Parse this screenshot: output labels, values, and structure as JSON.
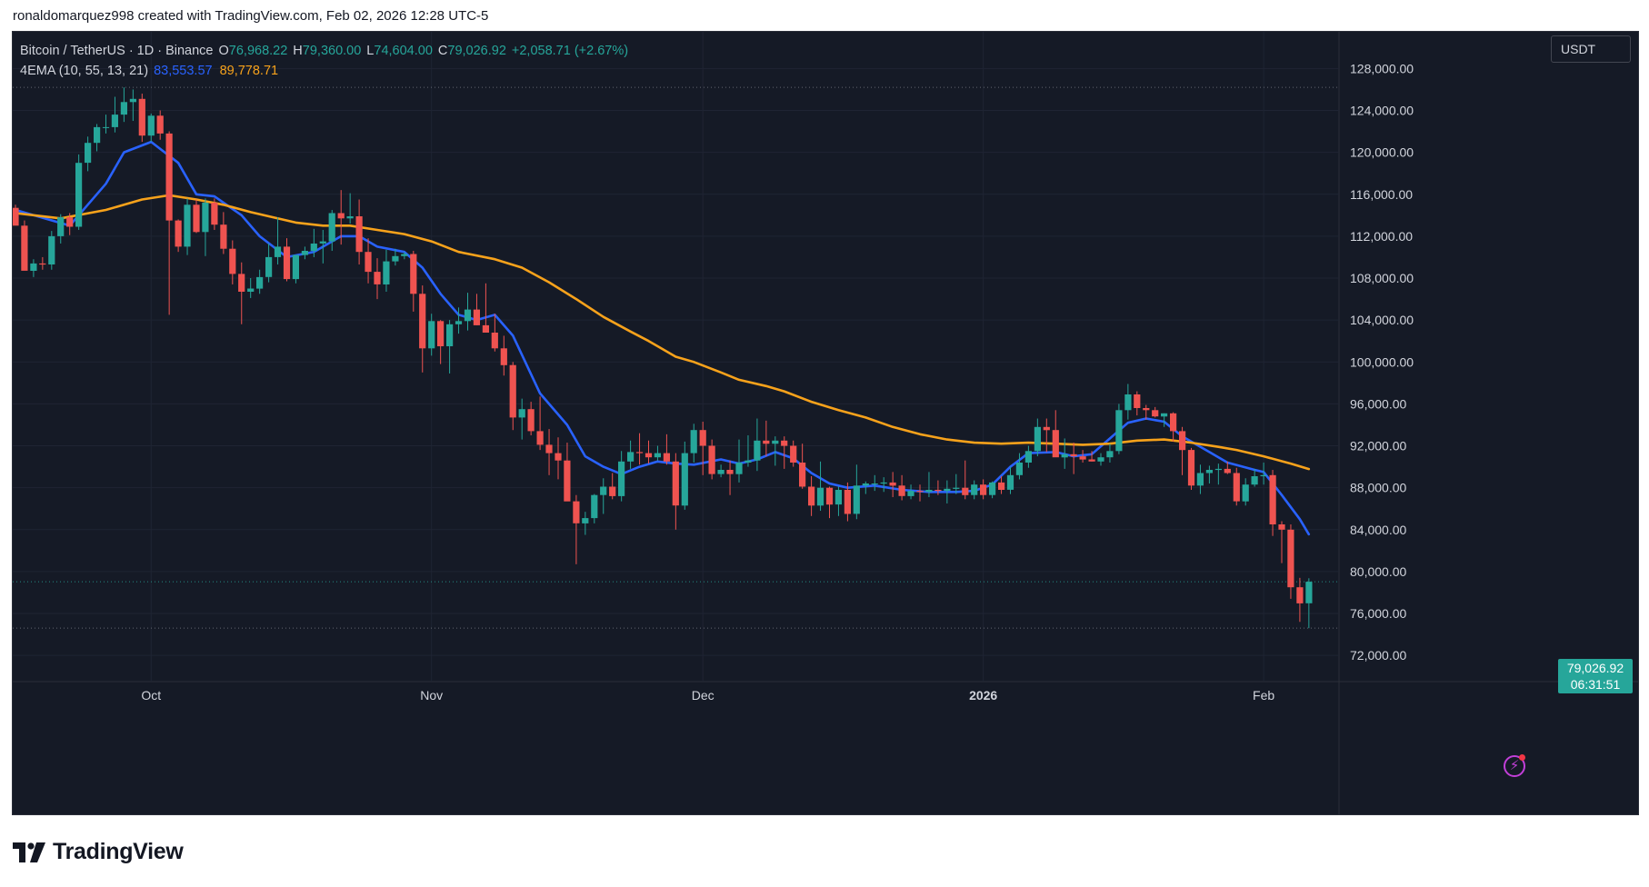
{
  "credit": "ronaldomarquez998 created with TradingView.com, Feb 02, 2026 12:28 UTC-5",
  "legend": {
    "symbol": "Bitcoin / TetherUS · 1D · Binance",
    "o_label": "O",
    "o_value": "76,968.22",
    "h_label": "H",
    "h_value": "79,360.00",
    "l_label": "L",
    "l_value": "74,604.00",
    "c_label": "C",
    "c_value": "79,026.92",
    "change": "+2,058.71 (+2.67%)",
    "indicator": "4EMA (10, 55, 13, 21)",
    "ema_fast_value": "83,553.57",
    "ema_slow_value": "89,778.71"
  },
  "currency_button": "USDT",
  "last_price": {
    "price": "79,026.92",
    "countdown": "06:31:51"
  },
  "brand": {
    "name": "TradingView"
  },
  "colors": {
    "up": "#26a69a",
    "down": "#ef5350",
    "ema_fast": "#2962ff",
    "ema_slow": "#f7a21b",
    "background": "#151a26"
  },
  "chart_data": {
    "type": "candlestick",
    "y_ticks": [
      "72,000.00",
      "76,000.00",
      "80,000.00",
      "84,000.00",
      "88,000.00",
      "92,000.00",
      "96,000.00",
      "100,000.00",
      "104,000.00",
      "108,000.00",
      "112,000.00",
      "116,000.00",
      "120,000.00",
      "124,000.00",
      "128,000.00"
    ],
    "x_ticks": [
      "Oct",
      "Nov",
      "Dec",
      "2026",
      "Feb"
    ],
    "ylim": [
      69500,
      131500
    ],
    "start_date": "2025-09-16",
    "dotted_levels": [
      126200,
      79027,
      74604
    ],
    "candles": [
      [
        114700,
        115000,
        113200,
        113000
      ],
      [
        113000,
        113500,
        109000,
        108700
      ],
      [
        108700,
        109800,
        108100,
        109400
      ],
      [
        109400,
        110000,
        108800,
        109300
      ],
      [
        109300,
        112500,
        108800,
        112000
      ],
      [
        112000,
        114100,
        111300,
        113800
      ],
      [
        113800,
        114200,
        112100,
        112900
      ],
      [
        112900,
        119800,
        112600,
        119000
      ],
      [
        119000,
        121500,
        118200,
        120900
      ],
      [
        120900,
        122700,
        120100,
        122400
      ],
      [
        122400,
        123600,
        121800,
        122400
      ],
      [
        122400,
        125300,
        121900,
        123600
      ],
      [
        123600,
        126200,
        122900,
        124800
      ],
      [
        124800,
        126000,
        123000,
        125100
      ],
      [
        125100,
        125600,
        121000,
        121600
      ],
      [
        121600,
        123700,
        121000,
        123500
      ],
      [
        123500,
        124000,
        121200,
        121800
      ],
      [
        121800,
        122000,
        104500,
        113500
      ],
      [
        113500,
        113600,
        110500,
        111000
      ],
      [
        111000,
        115600,
        110200,
        115000
      ],
      [
        115000,
        115500,
        112300,
        112400
      ],
      [
        112400,
        115600,
        110100,
        115200
      ],
      [
        115200,
        115600,
        112600,
        113100
      ],
      [
        113100,
        114300,
        110300,
        110800
      ],
      [
        110800,
        111600,
        107400,
        108400
      ],
      [
        108400,
        109500,
        103600,
        106700
      ],
      [
        106700,
        108000,
        106100,
        107000
      ],
      [
        107000,
        108800,
        106500,
        108100
      ],
      [
        108100,
        111300,
        107600,
        110000
      ],
      [
        110000,
        113800,
        109300,
        111000
      ],
      [
        111000,
        111800,
        107700,
        107900
      ],
      [
        107900,
        110200,
        107500,
        110200
      ],
      [
        110200,
        111000,
        109800,
        110600
      ],
      [
        110600,
        112700,
        110000,
        111300
      ],
      [
        111300,
        112600,
        109400,
        111500
      ],
      [
        111500,
        114500,
        110600,
        114200
      ],
      [
        114200,
        116400,
        111200,
        113700
      ],
      [
        113700,
        116100,
        113200,
        113900
      ],
      [
        113900,
        115500,
        109300,
        110500
      ],
      [
        110500,
        111800,
        107500,
        108600
      ],
      [
        108600,
        109900,
        106000,
        107400
      ],
      [
        107400,
        110700,
        106700,
        109600
      ],
      [
        109600,
        110800,
        109200,
        110100
      ],
      [
        110100,
        110500,
        109800,
        110300
      ],
      [
        110300,
        110600,
        104800,
        106500
      ],
      [
        106500,
        107300,
        99000,
        101300
      ],
      [
        101300,
        104600,
        100600,
        103900
      ],
      [
        103900,
        104000,
        99800,
        101500
      ],
      [
        101500,
        104000,
        98900,
        103600
      ],
      [
        103600,
        105200,
        102700,
        103900
      ],
      [
        103900,
        106600,
        103000,
        105000
      ],
      [
        105000,
        106500,
        103500,
        103500
      ],
      [
        103500,
        107500,
        102800,
        102800
      ],
      [
        102800,
        104600,
        101000,
        101300
      ],
      [
        101300,
        102500,
        98700,
        99700
      ],
      [
        99700,
        100000,
        93500,
        94700
      ],
      [
        94700,
        96500,
        92600,
        95500
      ],
      [
        95500,
        96200,
        93000,
        93400
      ],
      [
        93400,
        96700,
        91600,
        92100
      ],
      [
        92100,
        93600,
        89200,
        91300
      ],
      [
        91300,
        92800,
        88800,
        90600
      ],
      [
        90600,
        92300,
        86800,
        86700
      ],
      [
        86700,
        87300,
        80700,
        84600
      ],
      [
        84600,
        85700,
        83500,
        85100
      ],
      [
        85100,
        87400,
        84600,
        87300
      ],
      [
        87300,
        88900,
        85500,
        88100
      ],
      [
        88100,
        89400,
        86900,
        87200
      ],
      [
        87200,
        91500,
        86700,
        90500
      ],
      [
        90500,
        92500,
        89800,
        91400
      ],
      [
        91400,
        93200,
        90200,
        91300
      ],
      [
        91300,
        92500,
        90300,
        90900
      ],
      [
        90900,
        92000,
        90600,
        91300
      ],
      [
        91300,
        93100,
        90200,
        90500
      ],
      [
        90500,
        91300,
        84000,
        86300
      ],
      [
        86300,
        92400,
        85900,
        91300
      ],
      [
        91300,
        94100,
        90400,
        93500
      ],
      [
        93500,
        94300,
        89200,
        92000
      ],
      [
        92000,
        92600,
        88800,
        89300
      ],
      [
        89300,
        90200,
        89000,
        89700
      ],
      [
        89700,
        90600,
        87300,
        89300
      ],
      [
        89300,
        92600,
        88500,
        90400
      ],
      [
        90400,
        93000,
        90000,
        90600
      ],
      [
        90600,
        94600,
        89600,
        92500
      ],
      [
        92500,
        94400,
        91000,
        92200
      ],
      [
        92200,
        92900,
        90100,
        92500
      ],
      [
        92500,
        92900,
        89800,
        92000
      ],
      [
        92000,
        92500,
        90000,
        90400
      ],
      [
        90400,
        92200,
        87900,
        88100
      ],
      [
        88100,
        89100,
        85300,
        86300
      ],
      [
        86300,
        90500,
        85800,
        88000
      ],
      [
        88000,
        88100,
        85100,
        86400
      ],
      [
        86400,
        88100,
        85300,
        87800
      ],
      [
        87800,
        88500,
        84800,
        85500
      ],
      [
        85500,
        90200,
        85000,
        88200
      ],
      [
        88200,
        88600,
        87400,
        88400
      ],
      [
        88400,
        89200,
        87700,
        88400
      ],
      [
        88400,
        89000,
        87600,
        88500
      ],
      [
        88500,
        89500,
        87100,
        88200
      ],
      [
        88200,
        89200,
        86800,
        87200
      ],
      [
        87200,
        88300,
        86900,
        87700
      ],
      [
        87700,
        88300,
        86700,
        87600
      ],
      [
        87600,
        89500,
        87100,
        87800
      ],
      [
        87800,
        88700,
        87300,
        87700
      ],
      [
        87700,
        88700,
        86500,
        87900
      ],
      [
        87900,
        89300,
        87400,
        88000
      ],
      [
        88000,
        90600,
        86900,
        87300
      ],
      [
        87300,
        88700,
        86900,
        88300
      ],
      [
        88300,
        88800,
        86900,
        87300
      ],
      [
        87300,
        88600,
        87000,
        88500
      ],
      [
        88500,
        89100,
        87400,
        87800
      ],
      [
        87800,
        90000,
        87400,
        89200
      ],
      [
        89200,
        91300,
        88800,
        90400
      ],
      [
        90400,
        92000,
        89900,
        91500
      ],
      [
        91500,
        94600,
        91000,
        93800
      ],
      [
        93800,
        94600,
        91400,
        93500
      ],
      [
        93500,
        95400,
        91300,
        90900
      ],
      [
        90900,
        92700,
        89800,
        91200
      ],
      [
        91200,
        92300,
        89300,
        91000
      ],
      [
        91000,
        91600,
        90400,
        90700
      ],
      [
        90700,
        91500,
        90500,
        90500
      ],
      [
        90500,
        91300,
        90100,
        90900
      ],
      [
        90900,
        92200,
        90400,
        91500
      ],
      [
        91500,
        96000,
        91200,
        95400
      ],
      [
        95400,
        97900,
        94500,
        96900
      ],
      [
        96900,
        97200,
        94900,
        95600
      ],
      [
        95600,
        95900,
        94500,
        95400
      ],
      [
        95400,
        95700,
        94700,
        94800
      ],
      [
        94800,
        95100,
        93800,
        95100
      ],
      [
        95100,
        95200,
        92400,
        93400
      ],
      [
        93400,
        93800,
        89200,
        91600
      ],
      [
        91600,
        91800,
        87800,
        88200
      ],
      [
        88200,
        90200,
        87400,
        89400
      ],
      [
        89400,
        90100,
        88400,
        89700
      ],
      [
        89700,
        90300,
        88300,
        89800
      ],
      [
        89800,
        90500,
        89300,
        89400
      ],
      [
        89400,
        89900,
        86300,
        86700
      ],
      [
        86700,
        88900,
        86300,
        88300
      ],
      [
        88300,
        89800,
        88100,
        89100
      ],
      [
        89100,
        90400,
        88300,
        89200
      ],
      [
        89200,
        89700,
        83400,
        84500
      ],
      [
        84500,
        84800,
        80800,
        84000
      ],
      [
        84000,
        84500,
        77400,
        78500
      ],
      [
        78500,
        79400,
        75200,
        76968
      ],
      [
        76968,
        79360,
        74604,
        79027
      ]
    ],
    "series": [
      {
        "name": "83,553.57",
        "points": [
          [
            0,
            114500
          ],
          [
            6,
            113000
          ],
          [
            10,
            117000
          ],
          [
            12,
            120000
          ],
          [
            15,
            121000
          ],
          [
            18,
            119000
          ],
          [
            20,
            116000
          ],
          [
            22,
            115800
          ],
          [
            25,
            114000
          ],
          [
            27,
            112000
          ],
          [
            30,
            110000
          ],
          [
            33,
            110500
          ],
          [
            36,
            112000
          ],
          [
            38,
            112000
          ],
          [
            40,
            111000
          ],
          [
            43,
            110500
          ],
          [
            45,
            109000
          ],
          [
            47,
            106500
          ],
          [
            49,
            104500
          ],
          [
            51,
            104000
          ],
          [
            53,
            104500
          ],
          [
            55,
            102500
          ],
          [
            58,
            97000
          ],
          [
            61,
            94000
          ],
          [
            63,
            91000
          ],
          [
            65,
            90000
          ],
          [
            67,
            89300
          ],
          [
            69,
            90000
          ],
          [
            71,
            90500
          ],
          [
            73,
            90300
          ],
          [
            75,
            90200
          ],
          [
            78,
            90700
          ],
          [
            80,
            90300
          ],
          [
            82,
            90700
          ],
          [
            84,
            91400
          ],
          [
            86,
            90800
          ],
          [
            88,
            89400
          ],
          [
            90,
            88400
          ],
          [
            92,
            88000
          ],
          [
            95,
            88200
          ],
          [
            98,
            87800
          ],
          [
            101,
            87600
          ],
          [
            104,
            87600
          ],
          [
            106,
            87700
          ],
          [
            108,
            88300
          ],
          [
            110,
            90000
          ],
          [
            112,
            91300
          ],
          [
            115,
            91400
          ],
          [
            117,
            91000
          ],
          [
            119,
            91200
          ],
          [
            121,
            92700
          ],
          [
            123,
            94200
          ],
          [
            125,
            94600
          ],
          [
            127,
            94300
          ],
          [
            129,
            92900
          ],
          [
            132,
            91400
          ],
          [
            134,
            90400
          ],
          [
            137,
            89700
          ],
          [
            138,
            89500
          ],
          [
            140,
            87300
          ],
          [
            142,
            85000
          ],
          [
            143,
            83554
          ]
        ]
      },
      {
        "name": "89,778.71",
        "points": [
          [
            0,
            114200
          ],
          [
            5,
            113700
          ],
          [
            10,
            114500
          ],
          [
            14,
            115500
          ],
          [
            17,
            115900
          ],
          [
            20,
            115500
          ],
          [
            23,
            115000
          ],
          [
            26,
            114300
          ],
          [
            28,
            113900
          ],
          [
            31,
            113300
          ],
          [
            34,
            113000
          ],
          [
            37,
            113000
          ],
          [
            40,
            112600
          ],
          [
            43,
            112200
          ],
          [
            46,
            111500
          ],
          [
            49,
            110500
          ],
          [
            53,
            109800
          ],
          [
            56,
            109000
          ],
          [
            59,
            107600
          ],
          [
            62,
            106000
          ],
          [
            65,
            104300
          ],
          [
            68,
            102900
          ],
          [
            70,
            102000
          ],
          [
            73,
            100500
          ],
          [
            75,
            100000
          ],
          [
            78,
            99000
          ],
          [
            80,
            98300
          ],
          [
            83,
            97700
          ],
          [
            85,
            97200
          ],
          [
            88,
            96200
          ],
          [
            91,
            95400
          ],
          [
            94,
            94700
          ],
          [
            97,
            93800
          ],
          [
            100,
            93100
          ],
          [
            103,
            92600
          ],
          [
            106,
            92300
          ],
          [
            109,
            92200
          ],
          [
            112,
            92300
          ],
          [
            115,
            92200
          ],
          [
            118,
            92100
          ],
          [
            121,
            92200
          ],
          [
            124,
            92500
          ],
          [
            127,
            92600
          ],
          [
            130,
            92300
          ],
          [
            133,
            91900
          ],
          [
            135,
            91600
          ],
          [
            138,
            91000
          ],
          [
            141,
            90300
          ],
          [
            143,
            89779
          ]
        ]
      }
    ]
  }
}
